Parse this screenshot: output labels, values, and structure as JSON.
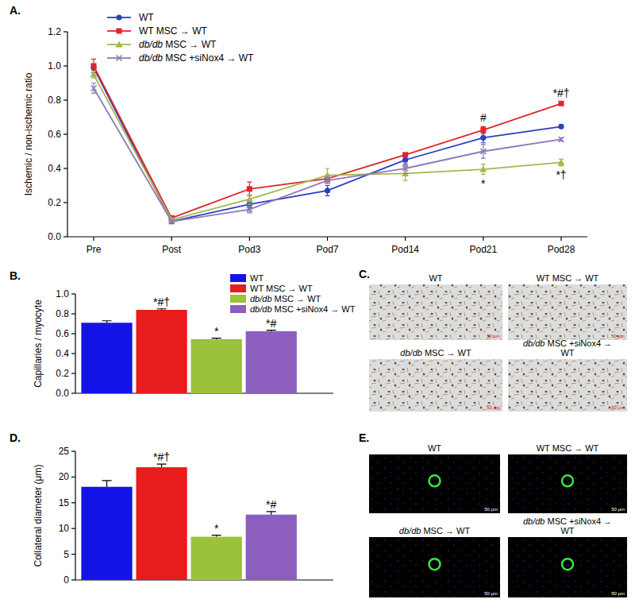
{
  "chart_data": [
    {
      "type": "line",
      "title": "A.",
      "ylabel": "Ischemic / non-ischemic ratio",
      "categories": [
        "Pre",
        "Post",
        "Pod3",
        "Pod7",
        "Pod14",
        "Pod21",
        "Pod28"
      ],
      "ylim": [
        0,
        1.2
      ],
      "yticks": [
        {
          "value": 0,
          "label": "0.0"
        },
        0.2,
        0.4,
        0.6,
        0.8,
        {
          "value": 1,
          "label": "1.0"
        },
        1.2
      ],
      "legend": "top-left",
      "series": [
        {
          "name": "WT",
          "color": "#2b3fc1",
          "marker": "circle",
          "values": [
            0.99,
            0.09,
            0.19,
            0.27,
            0.45,
            0.58,
            0.645
          ],
          "errors": [
            0.02,
            0.01,
            0.02,
            0.03,
            0.03,
            0.03,
            0.01
          ]
        },
        {
          "name": "WT MSC → WT",
          "color": "#e0262b",
          "marker": "square",
          "values": [
            1.0,
            0.11,
            0.28,
            0.34,
            0.48,
            0.625,
            0.78
          ],
          "errors": [
            0.04,
            0.01,
            0.04,
            0.02,
            0.01,
            0.02,
            0.01
          ]
        },
        {
          "name": "db/db MSC → WT",
          "color": "#a3b84f",
          "marker": "triangle",
          "values": [
            0.95,
            0.1,
            0.22,
            0.36,
            0.37,
            0.395,
            0.435
          ],
          "errors": [
            0.02,
            0.01,
            0.03,
            0.04,
            0.04,
            0.03,
            0.02
          ]
        },
        {
          "name": "db/db MSC +siNox4 → WT",
          "color": "#8e79b8",
          "marker": "x",
          "values": [
            0.87,
            0.09,
            0.16,
            0.33,
            0.4,
            0.5,
            0.57
          ],
          "errors": [
            0.03,
            0.01,
            0.02,
            0.02,
            0.03,
            0.04,
            0.01
          ]
        }
      ],
      "annotations": [
        {
          "text": "#",
          "series": 1,
          "index": 5,
          "position": "above"
        },
        {
          "text": "*",
          "series": 2,
          "index": 5,
          "position": "below"
        },
        {
          "text": "*#†",
          "series": 1,
          "index": 6,
          "position": "above"
        },
        {
          "text": "*†",
          "series": 2,
          "index": 6,
          "position": "below"
        }
      ]
    },
    {
      "type": "bar",
      "title": "B.",
      "ylabel": "Capillaries / myocyte",
      "categories": [
        null
      ],
      "ylim": [
        0,
        1
      ],
      "yticks": [
        {
          "value": 0,
          "label": "0.0"
        },
        0.2,
        0.4,
        0.6,
        0.8,
        {
          "value": 1,
          "label": "1.0"
        }
      ],
      "legend": "top-right",
      "series": [
        {
          "name": "WT",
          "color": "#1414e8",
          "values": [
            0.71
          ],
          "errors": [
            0.02
          ]
        },
        {
          "name": "WT MSC → WT",
          "color": "#e81c1c",
          "values": [
            0.84
          ],
          "errors": [
            0.01
          ]
        },
        {
          "name": "db/db MSC → WT",
          "color": "#9cc13a",
          "values": [
            0.545
          ],
          "errors": [
            0.01
          ]
        },
        {
          "name": "db/db MSC +siNox4 → WT",
          "color": "#8c5fbe",
          "values": [
            0.625
          ],
          "errors": [
            0.01
          ]
        }
      ],
      "annotations": [
        {
          "text": "*#†",
          "series": 1,
          "index": 0,
          "position": "above"
        },
        {
          "text": "*",
          "series": 2,
          "index": 0,
          "position": "above"
        },
        {
          "text": "*#",
          "series": 3,
          "index": 0,
          "position": "above"
        }
      ]
    },
    {
      "type": "bar",
      "title": "D.",
      "ylabel": "Collateral diameter (μm)",
      "categories": [
        null,
        null,
        null,
        null
      ],
      "values": [
        18.1,
        21.9,
        8.4,
        12.7
      ],
      "errors": [
        1.2,
        0.6,
        0.3,
        0.6
      ],
      "colors": [
        "#1414e8",
        "#e81c1c",
        "#9cc13a",
        "#8c5fbe"
      ],
      "ylim": [
        0,
        25
      ],
      "yticks": [
        0,
        5,
        10,
        15,
        20,
        25
      ],
      "annotations": [
        {
          "text": "*#†",
          "index": 1,
          "position": "above"
        },
        {
          "text": "*",
          "index": 2,
          "position": "above"
        },
        {
          "text": "*#",
          "index": 3,
          "position": "above"
        }
      ]
    }
  ],
  "image_panels": [
    {
      "title": "C.",
      "captions": [
        "WT",
        "WT MSC → WT",
        "db/db MSC → WT",
        "db/db MSC +siNox4 → WT"
      ],
      "scale_bar": "50 µm"
    },
    {
      "title": "E.",
      "captions": [
        "WT",
        "WT MSC → WT",
        "db/db MSC → WT",
        "db/db MSC +siNox4 → WT"
      ],
      "scale_bar": "50 µm"
    }
  ]
}
